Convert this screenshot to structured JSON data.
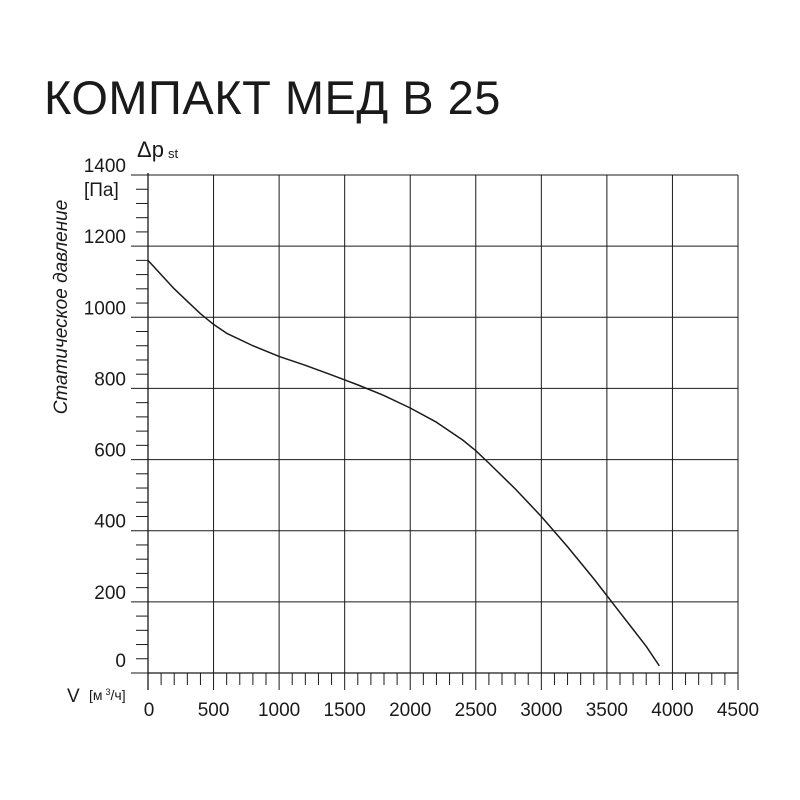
{
  "title": "КОМПАКТ МЕД В 25",
  "chart_data": {
    "type": "line",
    "title": "КОМПАКТ МЕД В 25",
    "ylabel": "Статическое давление",
    "y_symbol": "Δp",
    "y_symbol_sub": "st",
    "y_unit": "[Па]",
    "xlabel": "V",
    "x_unit": "[м³/ч]",
    "x_unit_base": "[м",
    "x_unit_sup": "3",
    "x_unit_tail": "/ч]",
    "xlim": [
      0,
      4500
    ],
    "ylim": [
      0,
      1400
    ],
    "x_ticks": [
      "0",
      "500",
      "1000",
      "1500",
      "2000",
      "2500",
      "3000",
      "3500",
      "4000",
      "4500"
    ],
    "y_ticks": [
      "0",
      "200",
      "400",
      "600",
      "800",
      "1000",
      "1200",
      "1400"
    ],
    "grid": true,
    "series": [
      {
        "x": [
          0,
          100,
          200,
          300,
          400,
          500,
          600,
          800,
          1000,
          1200,
          1400,
          1600,
          1800,
          2000,
          2200,
          2400,
          2500,
          2600,
          2800,
          3000,
          3200,
          3400,
          3600,
          3800,
          3900
        ],
        "y": [
          1160,
          1120,
          1080,
          1045,
          1010,
          980,
          955,
          920,
          890,
          865,
          838,
          810,
          780,
          745,
          705,
          655,
          625,
          590,
          518,
          440,
          355,
          265,
          170,
          75,
          20
        ]
      }
    ]
  }
}
